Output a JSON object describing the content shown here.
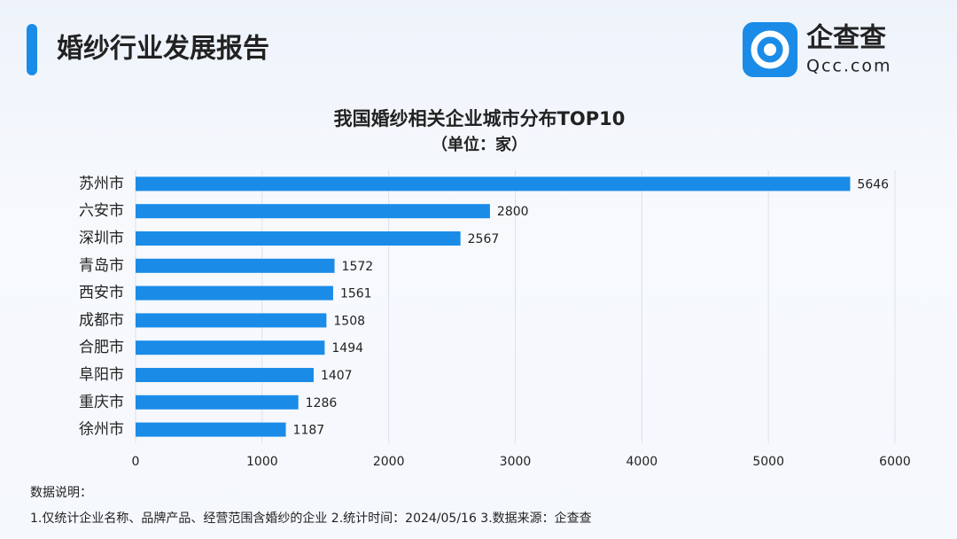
{
  "header": {
    "title": "婚纱行业发展报告",
    "logo_name": "企查查",
    "logo_domain": "Qcc.com"
  },
  "chart_data": {
    "type": "bar",
    "orientation": "horizontal",
    "title": "我国婚纱相关企业城市分布TOP10",
    "subtitle": "（单位：家）",
    "categories": [
      "苏州市",
      "六安市",
      "深圳市",
      "青岛市",
      "西安市",
      "成都市",
      "合肥市",
      "阜阳市",
      "重庆市",
      "徐州市"
    ],
    "values": [
      5646,
      2800,
      2567,
      1572,
      1561,
      1508,
      1494,
      1407,
      1286,
      1187
    ],
    "color": "#1a8ce8",
    "xlim": [
      0,
      6000
    ],
    "xticks": [
      0,
      1000,
      2000,
      3000,
      4000,
      5000,
      6000
    ],
    "grid": true
  },
  "notes": {
    "heading": "数据说明：",
    "text": "1.仅统计企业名称、品牌产品、经营范围含婚纱的企业  2.统计时间：2024/05/16  3.数据来源：企查查"
  }
}
